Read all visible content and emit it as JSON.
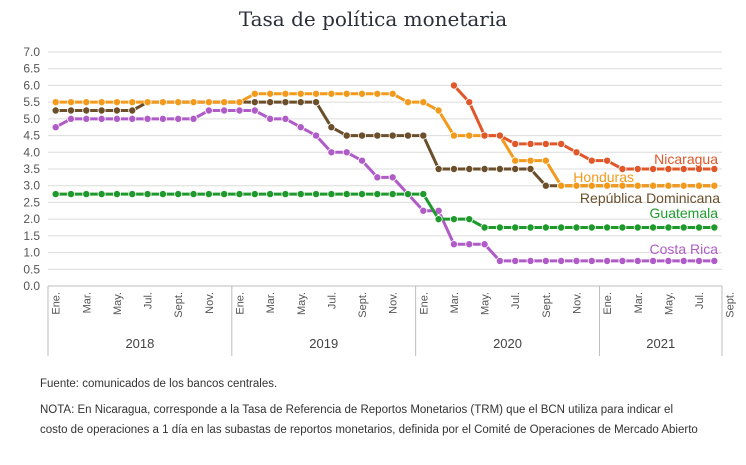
{
  "chart_data": {
    "type": "line",
    "title": "Tasa de política monetaria",
    "ylim": [
      0,
      7
    ],
    "yticks": [
      "0.0",
      "0.5",
      "1.0",
      "1.5",
      "2.0",
      "2.5",
      "3.0",
      "3.5",
      "4.0",
      "4.5",
      "5.0",
      "5.5",
      "6.0",
      "6.5",
      "7.0"
    ],
    "x_tick_labels": [
      "Ene.",
      "Mar.",
      "May.",
      "Jul.",
      "Sept.",
      "Nov.",
      "Ene.",
      "Mar.",
      "May.",
      "Jul.",
      "Sept.",
      "Nov.",
      "Ene.",
      "Mar.",
      "May.",
      "Jul.",
      "Sept.",
      "Nov.",
      "Ene.",
      "Mar.",
      "May.",
      "Jul.",
      "Sept."
    ],
    "years": [
      "2018",
      "2019",
      "2020",
      "2021"
    ],
    "grid": true,
    "series": [
      {
        "name": "Nicaragua",
        "color": "#e0572a",
        "start_index": 26,
        "values": [
          6.0,
          5.5,
          4.5,
          4.5,
          4.25,
          4.25,
          4.25,
          4.25,
          4.0,
          3.75,
          3.75,
          3.5,
          3.5,
          3.5,
          3.5,
          3.5,
          3.5,
          3.5
        ]
      },
      {
        "name": "Honduras",
        "color": "#f39a1c",
        "start_index": 0,
        "values": [
          5.5,
          5.5,
          5.5,
          5.5,
          5.5,
          5.5,
          5.5,
          5.5,
          5.5,
          5.5,
          5.5,
          5.5,
          5.5,
          5.75,
          5.75,
          5.75,
          5.75,
          5.75,
          5.75,
          5.75,
          5.75,
          5.75,
          5.75,
          5.5,
          5.5,
          5.25,
          4.5,
          4.5,
          4.5,
          4.5,
          3.75,
          3.75,
          3.75,
          3.0,
          3.0,
          3.0,
          3.0,
          3.0,
          3.0,
          3.0,
          3.0,
          3.0,
          3.0,
          3.0
        ]
      },
      {
        "name": "República Dominicana",
        "color": "#6b4e2a",
        "start_index": 0,
        "values": [
          5.25,
          5.25,
          5.25,
          5.25,
          5.25,
          5.25,
          5.5,
          5.5,
          5.5,
          5.5,
          5.5,
          5.5,
          5.5,
          5.5,
          5.5,
          5.5,
          5.5,
          5.5,
          4.75,
          4.5,
          4.5,
          4.5,
          4.5,
          4.5,
          4.5,
          3.5,
          3.5,
          3.5,
          3.5,
          3.5,
          3.5,
          3.5,
          3.0,
          3.0,
          3.0,
          3.0,
          3.0,
          3.0,
          3.0,
          3.0,
          3.0,
          3.0,
          3.0,
          3.0
        ]
      },
      {
        "name": "Guatemala",
        "color": "#1e9a2c",
        "start_index": 0,
        "values": [
          2.75,
          2.75,
          2.75,
          2.75,
          2.75,
          2.75,
          2.75,
          2.75,
          2.75,
          2.75,
          2.75,
          2.75,
          2.75,
          2.75,
          2.75,
          2.75,
          2.75,
          2.75,
          2.75,
          2.75,
          2.75,
          2.75,
          2.75,
          2.75,
          2.75,
          2.0,
          2.0,
          2.0,
          1.75,
          1.75,
          1.75,
          1.75,
          1.75,
          1.75,
          1.75,
          1.75,
          1.75,
          1.75,
          1.75,
          1.75,
          1.75,
          1.75,
          1.75,
          1.75
        ]
      },
      {
        "name": "Costa Rica",
        "color": "#b05cc8",
        "start_index": 0,
        "values": [
          4.75,
          5.0,
          5.0,
          5.0,
          5.0,
          5.0,
          5.0,
          5.0,
          5.0,
          5.0,
          5.25,
          5.25,
          5.25,
          5.25,
          5.0,
          5.0,
          4.75,
          4.5,
          4.0,
          4.0,
          3.75,
          3.25,
          3.25,
          2.75,
          2.25,
          2.25,
          1.25,
          1.25,
          1.25,
          0.75,
          0.75,
          0.75,
          0.75,
          0.75,
          0.75,
          0.75,
          0.75,
          0.75,
          0.75,
          0.75,
          0.75,
          0.75,
          0.75,
          0.75
        ]
      }
    ]
  },
  "notes": {
    "source": "Fuente: comunicados de los bancos centrales.",
    "note": "NOTA: En Nicaragua, corresponde a la Tasa de Referencia de Reportos Monetarios (TRM) que el BCN utiliza para indicar el costo de operaciones a 1 día en las subastas de reportos monetarios, definida por el Comité de Operaciones de Mercado Abierto"
  }
}
